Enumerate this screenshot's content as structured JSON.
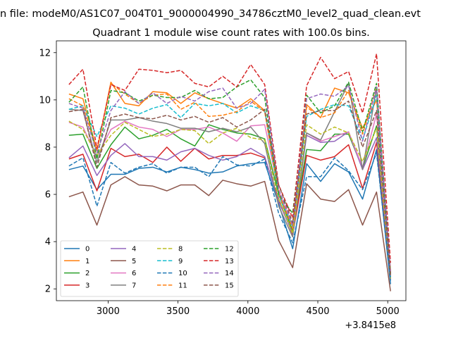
{
  "chart_data": {
    "type": "line",
    "suptitle": "n file: modeM0/AS1C07_004T01_9000004990_34786cztM0_level2_quad_clean.evt",
    "title": "Quadrant 1 module wise count rates with 100.0s bins.",
    "xlabel": "",
    "ylabel": "",
    "x_offset_label": "+3.8415e8",
    "xlim": [
      2630,
      5130
    ],
    "ylim": [
      1.5,
      12.5
    ],
    "xticks": [
      3000,
      3500,
      4000,
      4500,
      5000
    ],
    "yticks": [
      2,
      4,
      6,
      8,
      10,
      12
    ],
    "x": [
      2720,
      2820,
      2920,
      3020,
      3120,
      3220,
      3320,
      3420,
      3520,
      3620,
      3720,
      3820,
      3920,
      4020,
      4120,
      4220,
      4320,
      4420,
      4520,
      4620,
      4720,
      4820,
      4920,
      5020
    ],
    "legend_position": "lower-left",
    "series": [
      {
        "name": "0",
        "color": "#1f77b4",
        "style": "solid",
        "values": [
          7.05,
          7.2,
          6.2,
          6.85,
          6.85,
          7.1,
          7.15,
          6.95,
          7.15,
          7.05,
          6.9,
          6.95,
          7.2,
          7.3,
          7.35,
          5.6,
          3.7,
          7.3,
          6.55,
          7.3,
          6.95,
          5.8,
          7.9,
          2.2
        ]
      },
      {
        "name": "1",
        "color": "#ff7f0e",
        "style": "solid",
        "values": [
          10.25,
          10.05,
          7.85,
          10.75,
          9.85,
          9.75,
          10.35,
          10.3,
          9.85,
          10.3,
          10.05,
          9.85,
          9.65,
          10.05,
          9.55,
          6.1,
          4.65,
          9.8,
          9.25,
          10.5,
          10.3,
          8.8,
          10.0,
          2.75
        ]
      },
      {
        "name": "2",
        "color": "#2ca02c",
        "style": "solid",
        "values": [
          8.5,
          8.55,
          7.1,
          8.1,
          8.85,
          8.35,
          8.5,
          8.75,
          8.35,
          8.05,
          8.95,
          8.75,
          8.6,
          8.55,
          8.35,
          6.0,
          4.45,
          7.9,
          7.85,
          8.55,
          8.55,
          7.1,
          8.9,
          2.6
        ]
      },
      {
        "name": "3",
        "color": "#d62728",
        "style": "solid",
        "values": [
          7.5,
          7.7,
          6.15,
          7.95,
          7.6,
          7.7,
          7.35,
          8.0,
          7.4,
          7.95,
          7.5,
          7.65,
          7.65,
          7.75,
          7.55,
          5.8,
          4.3,
          7.65,
          7.45,
          7.6,
          8.1,
          6.25,
          8.2,
          2.5
        ]
      },
      {
        "name": "4",
        "color": "#9467bd",
        "style": "solid",
        "values": [
          7.55,
          8.05,
          6.8,
          7.65,
          8.15,
          7.6,
          7.6,
          7.45,
          7.8,
          7.95,
          7.65,
          7.45,
          7.6,
          7.95,
          7.6,
          5.7,
          4.35,
          8.5,
          8.2,
          8.25,
          8.65,
          7.05,
          8.4,
          2.65
        ]
      },
      {
        "name": "5",
        "color": "#8c564b",
        "style": "solid",
        "values": [
          5.9,
          6.1,
          4.7,
          6.4,
          6.75,
          6.4,
          6.35,
          6.15,
          6.4,
          6.4,
          5.95,
          6.6,
          6.45,
          6.35,
          6.55,
          4.05,
          2.9,
          6.45,
          5.8,
          5.7,
          6.2,
          4.7,
          6.1,
          1.9
        ]
      },
      {
        "name": "6",
        "color": "#e377c2",
        "style": "solid",
        "values": [
          9.05,
          8.85,
          7.6,
          8.75,
          9.1,
          8.85,
          8.75,
          8.45,
          8.75,
          8.75,
          8.85,
          8.6,
          8.25,
          8.9,
          8.95,
          6.15,
          4.6,
          8.6,
          8.25,
          8.45,
          8.65,
          7.15,
          9.4,
          2.6
        ]
      },
      {
        "name": "7",
        "color": "#7f7f7f",
        "style": "solid",
        "values": [
          9.6,
          9.55,
          7.35,
          9.15,
          9.15,
          9.25,
          9.1,
          9.0,
          8.8,
          8.8,
          8.65,
          8.8,
          8.65,
          8.85,
          8.15,
          5.5,
          4.2,
          8.6,
          8.3,
          9.5,
          10.7,
          7.05,
          10.5,
          2.4
        ]
      },
      {
        "name": "8",
        "color": "#bcbd22",
        "style": "dashed",
        "values": [
          9.1,
          8.75,
          7.65,
          8.5,
          9.05,
          8.75,
          8.45,
          8.55,
          8.75,
          8.7,
          8.15,
          8.6,
          8.8,
          8.4,
          8.3,
          5.8,
          4.35,
          8.95,
          8.55,
          8.85,
          8.6,
          7.4,
          8.8,
          2.45
        ]
      },
      {
        "name": "9",
        "color": "#17becf",
        "style": "dashed",
        "values": [
          9.6,
          9.75,
          8.45,
          9.75,
          9.65,
          9.4,
          9.65,
          9.8,
          9.25,
          9.85,
          9.75,
          9.85,
          9.45,
          9.75,
          9.55,
          5.95,
          4.65,
          9.3,
          9.6,
          9.8,
          9.75,
          8.3,
          10.2,
          2.5
        ]
      },
      {
        "name": "10",
        "color": "#1f77b4",
        "style": "dashed",
        "values": [
          7.2,
          7.55,
          5.5,
          7.35,
          6.9,
          7.15,
          7.3,
          6.9,
          7.15,
          7.15,
          6.75,
          7.6,
          7.25,
          7.2,
          7.5,
          5.2,
          3.95,
          6.75,
          6.75,
          7.55,
          7.0,
          6.2,
          7.75,
          2.35
        ]
      },
      {
        "name": "11",
        "color": "#ff7f0e",
        "style": "dashed",
        "values": [
          10.05,
          9.75,
          7.85,
          10.7,
          10.25,
          9.85,
          10.2,
          10.25,
          9.6,
          9.9,
          9.3,
          9.35,
          9.5,
          9.95,
          9.5,
          6.05,
          4.55,
          9.7,
          9.25,
          9.45,
          10.4,
          8.55,
          10.55,
          2.7
        ]
      },
      {
        "name": "12",
        "color": "#2ca02c",
        "style": "dashed",
        "values": [
          9.9,
          10.55,
          7.5,
          10.4,
          10.3,
          9.95,
          10.2,
          10.1,
          10.1,
          10.4,
          10.05,
          10.1,
          10.55,
          10.85,
          10.1,
          6.0,
          5.2,
          10.2,
          9.45,
          9.75,
          10.75,
          8.65,
          10.7,
          2.65
        ]
      },
      {
        "name": "13",
        "color": "#d62728",
        "style": "dashed",
        "values": [
          10.65,
          11.3,
          7.95,
          10.65,
          10.4,
          11.3,
          11.25,
          11.15,
          11.25,
          10.7,
          10.55,
          11.0,
          10.55,
          11.5,
          10.65,
          6.4,
          5.0,
          10.6,
          11.8,
          10.9,
          11.2,
          9.45,
          11.95,
          3.1
        ]
      },
      {
        "name": "14",
        "color": "#9467bd",
        "style": "dashed",
        "values": [
          9.85,
          9.65,
          7.75,
          9.55,
          10.35,
          9.85,
          10.3,
          9.85,
          10.15,
          9.95,
          10.35,
          10.5,
          9.65,
          9.85,
          10.45,
          6.2,
          4.7,
          10.05,
          10.25,
          10.15,
          10.6,
          8.25,
          10.55,
          2.7
        ]
      },
      {
        "name": "15",
        "color": "#8c564b",
        "style": "dashed",
        "values": [
          9.5,
          9.6,
          7.15,
          9.25,
          9.4,
          9.25,
          9.2,
          9.35,
          9.15,
          9.3,
          9.05,
          9.25,
          8.85,
          9.15,
          9.6,
          6.4,
          4.8,
          9.4,
          9.55,
          9.55,
          9.95,
          8.0,
          9.55,
          2.55
        ]
      }
    ]
  }
}
